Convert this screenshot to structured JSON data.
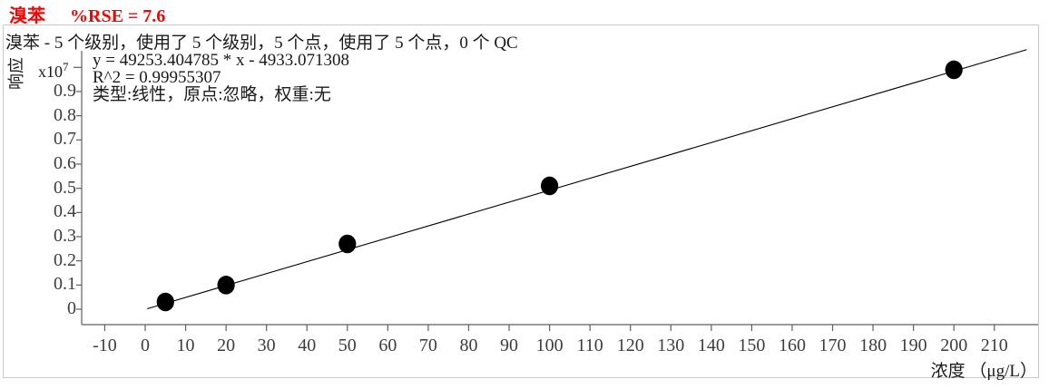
{
  "header": {
    "compound": "溴苯",
    "rse": "%RSE = 7.6",
    "color": "#ff0000"
  },
  "summary_line": "溴苯 - 5 个级别，使用了 5 个级别，5 个点，使用了 5 个点，0 个 QC",
  "fit_info": {
    "equation": "y = 49253.404785 * x  - 4933.071308",
    "r2": "R^2 = 0.99955307",
    "model": "类型:线性，原点:忽略，权重:无"
  },
  "chart_data": {
    "type": "scatter",
    "title": "溴苯 calibration curve",
    "x": [
      5,
      20,
      50,
      100,
      200
    ],
    "y_x1e7": [
      0.03,
      0.1,
      0.27,
      0.51,
      0.99
    ],
    "fit": {
      "type": "linear",
      "slope": 49253.404785,
      "intercept": -4933.071308,
      "r_squared": 0.99955307,
      "rse_percent": 7.6,
      "origin": "忽略",
      "weight": "无"
    },
    "xlabel": "浓度 （μg/L）",
    "ylabel": "响应",
    "y_scale": {
      "base": "x10",
      "exp": "7"
    },
    "x_ticks": [
      -10,
      0,
      10,
      20,
      30,
      40,
      50,
      60,
      70,
      80,
      90,
      100,
      110,
      120,
      130,
      140,
      150,
      160,
      170,
      180,
      190,
      200,
      210
    ],
    "y_tick_labels": [
      "0",
      "0.1",
      "0.2",
      "0.3",
      "0.4",
      "0.5",
      "0.6",
      "0.7",
      "0.8",
      "0.9"
    ],
    "xlim": [
      -15,
      221
    ],
    "ylim_x1e7": [
      0,
      1.07
    ],
    "grid": false,
    "legend": false,
    "marker_color": "#000000",
    "line_color": "#000000",
    "axis_color": "#5f5f5f",
    "frame_color": "#c9c9c9"
  }
}
